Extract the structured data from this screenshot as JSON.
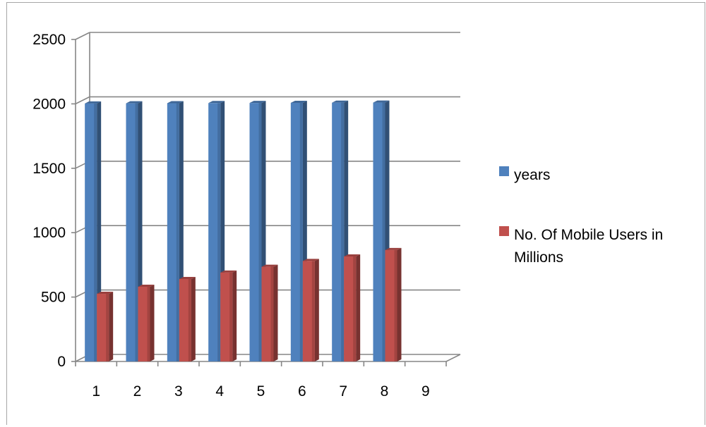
{
  "chart_data": {
    "type": "bar",
    "categories": [
      "1",
      "2",
      "3",
      "4",
      "5",
      "6",
      "7",
      "8",
      "9"
    ],
    "series": [
      {
        "name": "years",
        "values": [
          2003,
          2004,
          2005,
          2006,
          2007,
          2008,
          2009,
          2010,
          null
        ],
        "color": "#4f81bd"
      },
      {
        "name": "No. Of Mobile Users in Millions",
        "values": [
          525,
          580,
          640,
          690,
          735,
          780,
          815,
          865,
          null
        ],
        "color": "#c0504d"
      }
    ],
    "yticks": [
      "0",
      "500",
      "1000",
      "1500",
      "2000",
      "2500"
    ],
    "ylim": [
      0,
      2500
    ],
    "grid": true,
    "legend_position": "right",
    "legend_lines": [
      [
        "years"
      ],
      [
        "No. Of Mobile Users in",
        "Millions"
      ]
    ]
  }
}
